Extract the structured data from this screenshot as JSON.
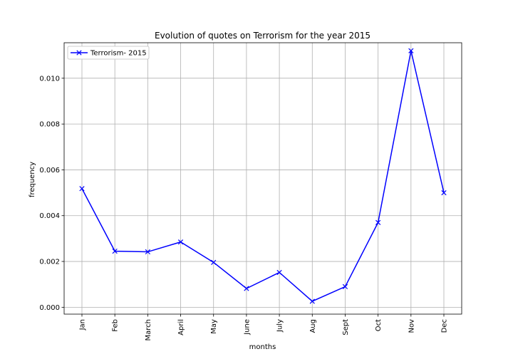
{
  "chart_data": {
    "type": "line",
    "title": "Evolution of quotes on Terrorism for the year 2015",
    "xlabel": "months",
    "ylabel": "frequency",
    "categories": [
      "Jan",
      "Feb",
      "March",
      "April",
      "May",
      "June",
      "July",
      "Aug",
      "Sept",
      "Oct",
      "Nov",
      "Dec"
    ],
    "series": [
      {
        "name": "Terrorism- 2015",
        "color": "#0000ff",
        "marker": "x",
        "values": [
          0.00518,
          0.00245,
          0.00242,
          0.00285,
          0.00196,
          0.00082,
          0.00152,
          0.00026,
          0.0009,
          0.0037,
          0.0112,
          0.005
        ]
      }
    ],
    "yticks": [
      0.0,
      0.002,
      0.004,
      0.006,
      0.008,
      0.01
    ],
    "ytick_labels": [
      "0.000",
      "0.002",
      "0.004",
      "0.006",
      "0.008",
      "0.010"
    ],
    "ylim": [
      -0.0003,
      0.01155
    ],
    "grid": true,
    "legend_position": "upper left"
  }
}
